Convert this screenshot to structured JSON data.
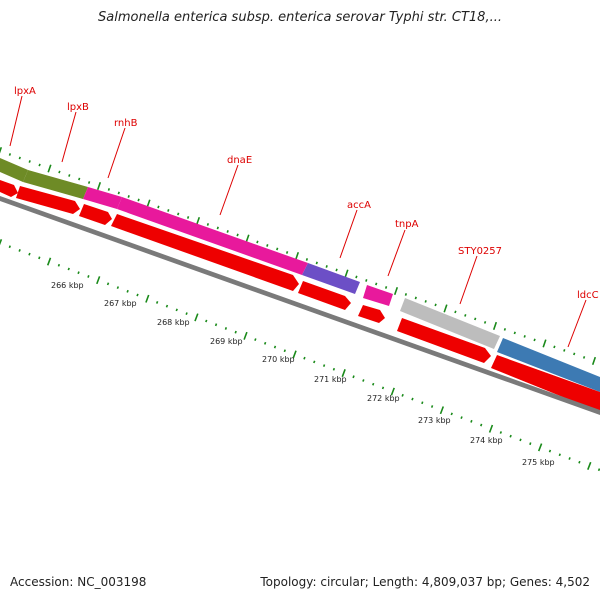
{
  "title": "Salmonella enterica subsp. enterica serovar Typhi str. CT18,...",
  "footer": {
    "accession": "Accession: NC_003198",
    "summary": "Topology: circular; Length: 4,809,037 bp; Genes: 4,502"
  },
  "colors": {
    "green": "#6e8b26",
    "magenta": "#e8199c",
    "purple": "#6c4fc6",
    "gray_gene": "#bdbdbd",
    "blue": "#3d7ab3",
    "red": "#ee0000",
    "track_line": "#7a7a7a",
    "ticks": "#1a8a1a",
    "label_red": "#dd0000"
  },
  "gene_labels": [
    "lpxA",
    "lpxB",
    "rnhB",
    "dnaE",
    "accA",
    "tnpA",
    "STY0257",
    "ldcC"
  ],
  "kbp_labels": [
    "266 kbp",
    "267 kbp",
    "268 kbp",
    "269 kbp",
    "270 kbp",
    "271 kbp",
    "272 kbp",
    "273 kbp",
    "274 kbp",
    "275 kbp"
  ]
}
